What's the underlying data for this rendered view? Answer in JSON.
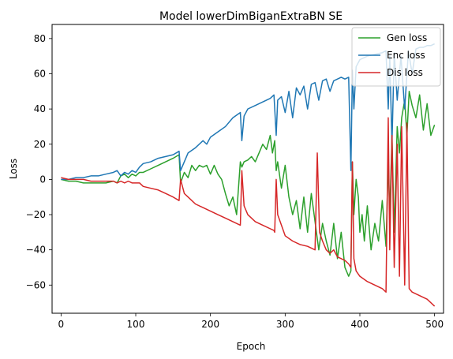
{
  "chart_data": {
    "type": "line",
    "title": "Model lowerDimBiganExtraBN SE",
    "xlabel": "Epoch",
    "ylabel": "Loss",
    "xlim": [
      -12,
      512
    ],
    "ylim": [
      -76,
      88
    ],
    "xticks": [
      0,
      100,
      200,
      300,
      400,
      500
    ],
    "yticks": [
      -60,
      -40,
      -20,
      0,
      20,
      40,
      60,
      80
    ],
    "grid": false,
    "legend_position": "top-right",
    "series": [
      {
        "name": "Gen loss",
        "color": "#2ca02c",
        "x": [
          0,
          10,
          20,
          30,
          40,
          50,
          60,
          70,
          75,
          80,
          85,
          90,
          95,
          100,
          105,
          110,
          120,
          130,
          140,
          150,
          158,
          160,
          165,
          170,
          175,
          180,
          185,
          190,
          195,
          200,
          205,
          210,
          215,
          220,
          225,
          230,
          235,
          240,
          242,
          245,
          250,
          255,
          260,
          265,
          270,
          275,
          280,
          283,
          286,
          288,
          290,
          295,
          300,
          305,
          310,
          315,
          320,
          325,
          330,
          335,
          340,
          345,
          350,
          355,
          360,
          365,
          370,
          375,
          380,
          385,
          388,
          390,
          392,
          395,
          398,
          400,
          403,
          406,
          410,
          415,
          420,
          425,
          430,
          435,
          438,
          440,
          443,
          446,
          450,
          453,
          456,
          460,
          463,
          466,
          470,
          475,
          480,
          485,
          490,
          495,
          500
        ],
        "y": [
          0,
          -1,
          -1,
          -2,
          -2,
          -2,
          -2,
          -1,
          -2,
          2,
          3,
          1,
          3,
          2,
          4,
          4,
          6,
          8,
          10,
          12,
          14,
          -2,
          4,
          1,
          8,
          5,
          8,
          7,
          8,
          3,
          8,
          3,
          0,
          -8,
          -15,
          -10,
          -20,
          10,
          7,
          10,
          11,
          13,
          10,
          15,
          20,
          17,
          25,
          15,
          22,
          5,
          10,
          -5,
          8,
          -10,
          -20,
          -12,
          -28,
          -10,
          -30,
          -8,
          -24,
          -40,
          -25,
          -35,
          -43,
          -25,
          -45,
          -30,
          -50,
          -55,
          -52,
          10,
          -20,
          0,
          -10,
          -30,
          -20,
          -35,
          -15,
          -40,
          -25,
          -35,
          -12,
          -38,
          10,
          -20,
          25,
          -30,
          30,
          15,
          35,
          45,
          25,
          50,
          42,
          35,
          48,
          28,
          43,
          25,
          31
        ]
      },
      {
        "name": "Enc loss",
        "color": "#1f77b4",
        "x": [
          0,
          10,
          20,
          30,
          40,
          50,
          60,
          70,
          75,
          80,
          85,
          90,
          95,
          100,
          105,
          110,
          120,
          130,
          140,
          150,
          158,
          160,
          170,
          180,
          190,
          195,
          200,
          210,
          220,
          230,
          240,
          242,
          245,
          250,
          260,
          270,
          280,
          285,
          288,
          290,
          295,
          300,
          305,
          310,
          315,
          320,
          325,
          330,
          335,
          340,
          345,
          350,
          355,
          360,
          365,
          370,
          375,
          380,
          385,
          388,
          390,
          392,
          395,
          400,
          410,
          420,
          430,
          435,
          438,
          440,
          443,
          446,
          450,
          455,
          460,
          465,
          470,
          475,
          480,
          485,
          490,
          495,
          500
        ],
        "y": [
          0,
          0,
          1,
          1,
          2,
          2,
          3,
          4,
          5,
          2,
          4,
          3,
          5,
          4,
          7,
          9,
          10,
          12,
          13,
          14,
          16,
          5,
          15,
          18,
          22,
          20,
          24,
          27,
          30,
          35,
          38,
          22,
          36,
          40,
          42,
          44,
          46,
          48,
          25,
          45,
          47,
          38,
          50,
          35,
          52,
          48,
          53,
          40,
          54,
          55,
          45,
          56,
          57,
          50,
          56,
          57,
          58,
          57,
          58,
          5,
          62,
          40,
          64,
          68,
          70,
          71,
          72,
          73,
          40,
          70,
          20,
          72,
          45,
          70,
          40,
          73,
          60,
          74,
          75,
          75,
          76,
          76,
          77
        ]
      },
      {
        "name": "Dis loss",
        "color": "#d62728",
        "x": [
          0,
          10,
          20,
          30,
          40,
          50,
          60,
          70,
          75,
          80,
          85,
          90,
          95,
          100,
          105,
          110,
          120,
          130,
          140,
          150,
          158,
          160,
          165,
          170,
          180,
          190,
          200,
          210,
          220,
          230,
          240,
          242,
          245,
          250,
          260,
          270,
          280,
          285,
          286,
          288,
          290,
          300,
          310,
          320,
          330,
          340,
          343,
          346,
          350,
          355,
          360,
          365,
          370,
          380,
          385,
          388,
          390,
          392,
          395,
          400,
          410,
          420,
          430,
          435,
          438,
          440,
          443,
          446,
          450,
          453,
          456,
          460,
          463,
          466,
          470,
          480,
          490,
          500
        ],
        "y": [
          1,
          0,
          0,
          0,
          -1,
          -1,
          -1,
          -1,
          -2,
          -1,
          -2,
          -1,
          -2,
          -2,
          -2,
          -4,
          -5,
          -6,
          -8,
          -10,
          -12,
          0,
          -8,
          -10,
          -14,
          -16,
          -18,
          -20,
          -22,
          -24,
          -26,
          5,
          -15,
          -20,
          -24,
          -26,
          -28,
          -29,
          -30,
          0,
          -20,
          -32,
          -35,
          -37,
          -38,
          -40,
          15,
          -30,
          -35,
          -40,
          -42,
          -40,
          -44,
          -46,
          -48,
          -50,
          10,
          -45,
          -52,
          -55,
          -58,
          -60,
          -62,
          -64,
          35,
          -40,
          25,
          -50,
          20,
          -55,
          30,
          -60,
          32,
          -62,
          -64,
          -66,
          -68,
          -72
        ]
      }
    ]
  }
}
